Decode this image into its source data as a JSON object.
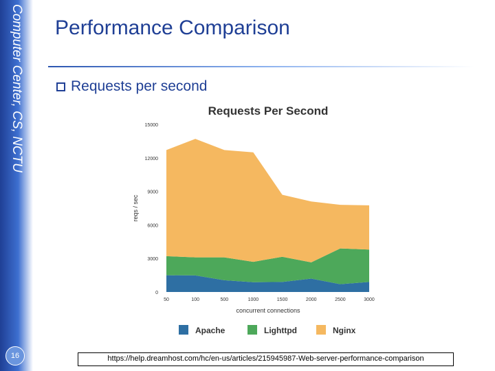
{
  "sidebar": {
    "vertical_text": "Computer Center, CS, NCTU",
    "page_number": "16"
  },
  "slide": {
    "title": "Performance Comparison",
    "bullet": "Requests per second",
    "source": "https://help.dreamhost.com/hc/en-us/articles/215945987-Web-server-performance-comparison"
  },
  "colors": {
    "apache": "#2e6fa3",
    "lighttpd": "#4da85a",
    "nginx": "#f5b860",
    "title_blue": "#1f3f95"
  },
  "chart_data": {
    "type": "area",
    "stacked": true,
    "title": "Requests Per Second",
    "xlabel": "concurrent connections",
    "ylabel": "reqs / sec",
    "categories": [
      "50",
      "100",
      "500",
      "1000",
      "1500",
      "2000",
      "2500",
      "3000"
    ],
    "ylim": [
      0,
      15000
    ],
    "yticks": [
      "0",
      "3000",
      "6000",
      "9000",
      "12000",
      "15000"
    ],
    "legend_position": "bottom",
    "series": [
      {
        "name": "Apache",
        "values": [
          1500,
          1480,
          1050,
          880,
          900,
          1200,
          700,
          900
        ]
      },
      {
        "name": "Lighttpd",
        "values": [
          1700,
          1620,
          2050,
          1820,
          2250,
          1450,
          3200,
          2900
        ]
      },
      {
        "name": "Nginx",
        "values": [
          9500,
          10600,
          9600,
          9800,
          5550,
          5450,
          3900,
          3950
        ]
      }
    ]
  }
}
